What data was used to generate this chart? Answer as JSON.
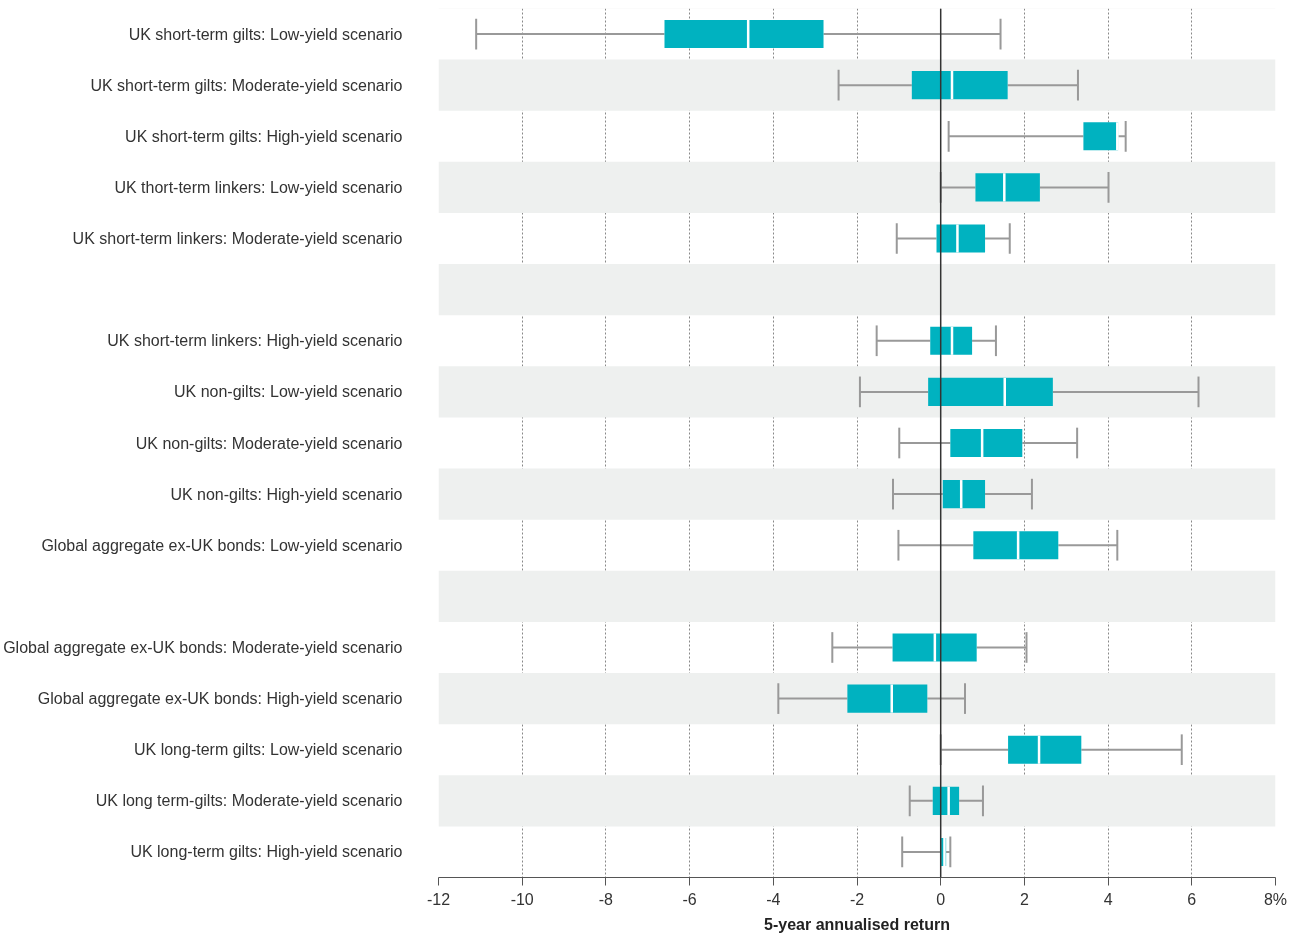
{
  "chart_data": {
    "type": "box",
    "orientation": "horizontal",
    "xlabel": "5-year annualised return",
    "categories": [
      "UK short-term gilts: Low-yield scenario",
      "UK short-term gilts: Moderate-yield scenario",
      "UK short-term gilts: High-yield scenario",
      "UK thort-term linkers: Low-yield scenario",
      "UK short-term linkers: Moderate-yield scenario",
      null,
      "UK short-term linkers: High-yield scenario",
      "UK non-gilts: Low-yield scenario",
      "UK non-gilts: Moderate-yield scenario",
      "UK non-gilts: High-yield scenario",
      "Global aggregate ex-UK bonds: Low-yield scenario",
      null,
      "Global aggregate ex-UK bonds: Moderate-yield scenario",
      "Global aggregate ex-UK bonds: High-yield scenario",
      "UK long-term gilts: Low-yield scenario",
      "UK long term-gilts: Moderate-yield scenario",
      "UK long-term gilts: High-yield scenario"
    ],
    "boxes": [
      {
        "low": -11.1,
        "q1": -6.6,
        "median": -4.6,
        "q3": -2.8,
        "high": 1.43
      },
      {
        "low": -2.44,
        "q1": -0.69,
        "median": 0.27,
        "q3": 1.6,
        "high": 3.28
      },
      {
        "low": 0.19,
        "q1": 3.41,
        "median": 4.22,
        "q3": 4.24,
        "high": 4.42
      },
      {
        "low": 0.0,
        "q1": 0.83,
        "median": 1.52,
        "q3": 2.37,
        "high": 4.01
      },
      {
        "low": -1.05,
        "q1": -0.1,
        "median": 0.4,
        "q3": 1.06,
        "high": 1.65
      },
      null,
      {
        "low": -1.53,
        "q1": -0.25,
        "median": 0.27,
        "q3": 0.75,
        "high": 1.32
      },
      {
        "low": -1.93,
        "q1": -0.3,
        "median": 1.53,
        "q3": 2.68,
        "high": 6.16
      },
      {
        "low": -0.99,
        "q1": 0.23,
        "median": 0.99,
        "q3": 1.95,
        "high": 3.26
      },
      {
        "low": -1.14,
        "q1": 0.05,
        "median": 0.49,
        "q3": 1.06,
        "high": 2.18
      },
      {
        "low": -1.01,
        "q1": 0.78,
        "median": 1.85,
        "q3": 2.81,
        "high": 4.22
      },
      null,
      {
        "low": -2.59,
        "q1": -1.15,
        "median": -0.14,
        "q3": 0.86,
        "high": 2.05
      },
      {
        "low": -3.88,
        "q1": -2.23,
        "median": -1.17,
        "q3": -0.32,
        "high": 0.58
      },
      {
        "low": 0.0,
        "q1": 1.61,
        "median": 2.35,
        "q3": 3.36,
        "high": 5.76
      },
      {
        "low": -0.74,
        "q1": -0.19,
        "median": 0.19,
        "q3": 0.44,
        "high": 1.01
      },
      {
        "low": -0.92,
        "q1": 0.01,
        "median": 0.09,
        "q3": 0.13,
        "high": 0.23
      }
    ],
    "color": "#00b2c0",
    "xlim": [
      -12,
      8
    ],
    "xticks": [
      -12,
      -10,
      -8,
      -6,
      -4,
      -2,
      0,
      2,
      4,
      6,
      {
        "value": 8,
        "label": "8%"
      }
    ],
    "grid": "x",
    "ref_lines": [
      {
        "axis": "x",
        "value": 0,
        "color": "#333333"
      }
    ]
  }
}
